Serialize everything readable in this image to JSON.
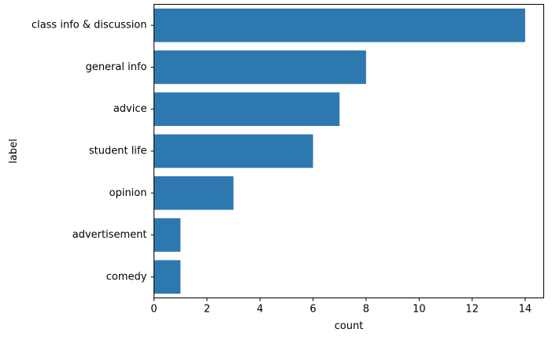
{
  "chart_data": {
    "type": "bar",
    "orientation": "horizontal",
    "title": "",
    "xlabel": "count",
    "ylabel": "label",
    "categories": [
      "class info & discussion",
      "general info",
      "advice",
      "student life",
      "opinion",
      "advertisement",
      "comedy"
    ],
    "values": [
      14,
      8,
      7,
      6,
      3,
      1,
      1
    ],
    "xlim": [
      0,
      14.7
    ],
    "xticks": [
      0,
      2,
      4,
      6,
      8,
      10,
      12,
      14
    ],
    "bar_color": "#2e78b0",
    "grid": false,
    "legend": "none"
  }
}
